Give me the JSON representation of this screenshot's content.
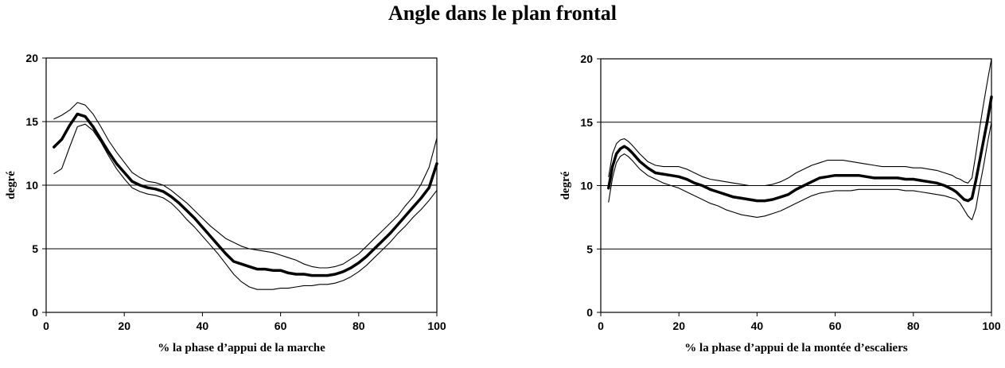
{
  "title": "Angle dans le plan frontal",
  "chart_data": [
    {
      "type": "line",
      "xlabel": "% la phase d’appui de la marche",
      "ylabel": "degré",
      "xlim": [
        0,
        100
      ],
      "ylim": [
        0,
        20
      ],
      "xticks": [
        "0",
        "20",
        "40",
        "60",
        "80",
        "100"
      ],
      "yticks": [
        "0",
        "5",
        "10",
        "15",
        "20"
      ],
      "grid": "horizontal",
      "series": [
        {
          "role": "mean",
          "x": [
            2,
            4,
            6,
            8,
            10,
            12,
            14,
            16,
            18,
            20,
            22,
            24,
            26,
            28,
            30,
            32,
            34,
            36,
            38,
            40,
            42,
            44,
            46,
            48,
            50,
            52,
            54,
            56,
            58,
            60,
            62,
            64,
            66,
            68,
            70,
            72,
            74,
            76,
            78,
            80,
            82,
            84,
            86,
            88,
            90,
            92,
            94,
            96,
            98,
            100
          ],
          "y": [
            13.0,
            13.6,
            14.7,
            15.6,
            15.4,
            14.6,
            13.6,
            12.6,
            11.7,
            11.0,
            10.3,
            10.0,
            9.8,
            9.7,
            9.5,
            9.1,
            8.6,
            8.0,
            7.4,
            6.7,
            6.0,
            5.3,
            4.6,
            4.0,
            3.8,
            3.6,
            3.4,
            3.4,
            3.3,
            3.3,
            3.1,
            3.0,
            3.0,
            2.9,
            2.9,
            2.9,
            3.0,
            3.2,
            3.5,
            3.9,
            4.4,
            5.0,
            5.6,
            6.2,
            6.9,
            7.6,
            8.3,
            9.0,
            9.8,
            11.7
          ]
        },
        {
          "role": "upper",
          "x": [
            2,
            4,
            6,
            8,
            10,
            12,
            14,
            16,
            18,
            20,
            22,
            24,
            26,
            28,
            30,
            32,
            34,
            36,
            38,
            40,
            42,
            44,
            46,
            48,
            50,
            52,
            54,
            56,
            58,
            60,
            62,
            64,
            66,
            68,
            70,
            72,
            74,
            76,
            78,
            80,
            82,
            84,
            86,
            88,
            90,
            92,
            94,
            96,
            98,
            100
          ],
          "y": [
            15.2,
            15.5,
            15.9,
            16.5,
            16.3,
            15.6,
            14.6,
            13.5,
            12.6,
            11.8,
            11.0,
            10.6,
            10.3,
            10.2,
            10.0,
            9.6,
            9.1,
            8.6,
            8.0,
            7.4,
            6.8,
            6.3,
            5.8,
            5.5,
            5.2,
            5.0,
            4.9,
            4.8,
            4.7,
            4.5,
            4.3,
            4.1,
            3.8,
            3.6,
            3.5,
            3.5,
            3.6,
            3.8,
            4.2,
            4.6,
            5.2,
            5.8,
            6.4,
            7.0,
            7.6,
            8.4,
            9.1,
            10.1,
            11.4,
            13.7
          ]
        },
        {
          "role": "lower",
          "x": [
            2,
            4,
            6,
            8,
            10,
            12,
            14,
            16,
            18,
            20,
            22,
            24,
            26,
            28,
            30,
            32,
            34,
            36,
            38,
            40,
            42,
            44,
            46,
            48,
            50,
            52,
            54,
            56,
            58,
            60,
            62,
            64,
            66,
            68,
            70,
            72,
            74,
            76,
            78,
            80,
            82,
            84,
            86,
            88,
            90,
            92,
            94,
            96,
            98,
            100
          ],
          "y": [
            10.9,
            11.3,
            13.0,
            14.6,
            14.8,
            14.3,
            13.4,
            12.3,
            11.3,
            10.5,
            9.8,
            9.5,
            9.3,
            9.2,
            9.0,
            8.6,
            8.0,
            7.3,
            6.7,
            6.0,
            5.3,
            4.6,
            3.8,
            3.0,
            2.4,
            2.0,
            1.8,
            1.8,
            1.8,
            1.9,
            1.9,
            2.0,
            2.1,
            2.1,
            2.2,
            2.2,
            2.3,
            2.5,
            2.8,
            3.2,
            3.7,
            4.3,
            4.9,
            5.5,
            6.2,
            6.8,
            7.5,
            8.1,
            8.8,
            9.6
          ]
        }
      ]
    },
    {
      "type": "line",
      "xlabel": "% la phase d’appui de la montée d’escaliers",
      "ylabel": "degré",
      "xlim": [
        0,
        100
      ],
      "ylim": [
        0,
        20
      ],
      "xticks": [
        "0",
        "20",
        "40",
        "60",
        "80",
        "100"
      ],
      "yticks": [
        "0",
        "5",
        "10",
        "15",
        "20"
      ],
      "grid": "horizontal",
      "series": [
        {
          "role": "mean",
          "x": [
            2,
            3,
            4,
            5,
            6,
            7,
            8,
            10,
            12,
            14,
            16,
            18,
            20,
            22,
            24,
            26,
            28,
            30,
            32,
            34,
            36,
            38,
            40,
            42,
            44,
            46,
            48,
            50,
            52,
            54,
            56,
            58,
            60,
            62,
            64,
            66,
            68,
            70,
            72,
            74,
            76,
            78,
            80,
            82,
            84,
            86,
            88,
            90,
            91,
            92,
            93,
            94,
            95,
            96,
            97,
            98,
            99,
            100
          ],
          "y": [
            9.8,
            11.5,
            12.5,
            12.9,
            13.1,
            12.9,
            12.6,
            11.9,
            11.4,
            11.0,
            10.9,
            10.8,
            10.7,
            10.5,
            10.2,
            10.0,
            9.7,
            9.5,
            9.3,
            9.1,
            9.0,
            8.9,
            8.8,
            8.8,
            8.9,
            9.1,
            9.3,
            9.7,
            10.0,
            10.3,
            10.6,
            10.7,
            10.8,
            10.8,
            10.8,
            10.8,
            10.7,
            10.6,
            10.6,
            10.6,
            10.6,
            10.5,
            10.5,
            10.4,
            10.3,
            10.2,
            10.0,
            9.7,
            9.5,
            9.2,
            8.9,
            8.8,
            9.0,
            10.4,
            12.0,
            13.6,
            15.2,
            17.0
          ]
        },
        {
          "role": "upper",
          "x": [
            2,
            3,
            4,
            5,
            6,
            7,
            8,
            10,
            12,
            14,
            16,
            18,
            20,
            22,
            24,
            26,
            28,
            30,
            32,
            34,
            36,
            38,
            40,
            42,
            44,
            46,
            48,
            50,
            52,
            54,
            56,
            58,
            60,
            62,
            64,
            66,
            68,
            70,
            72,
            74,
            76,
            78,
            80,
            82,
            84,
            86,
            88,
            90,
            91,
            92,
            93,
            94,
            95,
            96,
            97,
            98,
            99,
            100
          ],
          "y": [
            10.7,
            12.5,
            13.3,
            13.6,
            13.7,
            13.5,
            13.2,
            12.5,
            11.9,
            11.6,
            11.5,
            11.5,
            11.5,
            11.3,
            11.0,
            10.7,
            10.5,
            10.4,
            10.3,
            10.2,
            10.1,
            10.0,
            10.0,
            10.0,
            10.1,
            10.3,
            10.6,
            11.0,
            11.3,
            11.6,
            11.8,
            12.0,
            12.0,
            12.0,
            11.9,
            11.8,
            11.7,
            11.6,
            11.5,
            11.5,
            11.5,
            11.5,
            11.4,
            11.4,
            11.3,
            11.2,
            11.0,
            10.8,
            10.6,
            10.5,
            10.3,
            10.2,
            10.6,
            12.5,
            14.6,
            16.5,
            18.3,
            20.0
          ]
        },
        {
          "role": "lower",
          "x": [
            2,
            3,
            4,
            5,
            6,
            7,
            8,
            10,
            12,
            14,
            16,
            18,
            20,
            22,
            24,
            26,
            28,
            30,
            32,
            34,
            36,
            38,
            40,
            42,
            44,
            46,
            48,
            50,
            52,
            54,
            56,
            58,
            60,
            62,
            64,
            66,
            68,
            70,
            72,
            74,
            76,
            78,
            80,
            82,
            84,
            86,
            88,
            90,
            91,
            92,
            93,
            94,
            95,
            96,
            97,
            98,
            99,
            100
          ],
          "y": [
            8.7,
            10.6,
            11.8,
            12.3,
            12.5,
            12.3,
            12.0,
            11.3,
            10.8,
            10.5,
            10.2,
            10.0,
            9.8,
            9.5,
            9.2,
            8.9,
            8.6,
            8.4,
            8.1,
            7.9,
            7.7,
            7.6,
            7.5,
            7.6,
            7.8,
            8.0,
            8.3,
            8.6,
            8.9,
            9.2,
            9.4,
            9.5,
            9.6,
            9.6,
            9.6,
            9.7,
            9.7,
            9.7,
            9.7,
            9.7,
            9.7,
            9.6,
            9.6,
            9.5,
            9.4,
            9.3,
            9.2,
            9.0,
            8.9,
            8.6,
            8.1,
            7.6,
            7.3,
            8.2,
            10.0,
            11.6,
            13.4,
            15.0
          ]
        }
      ]
    }
  ]
}
